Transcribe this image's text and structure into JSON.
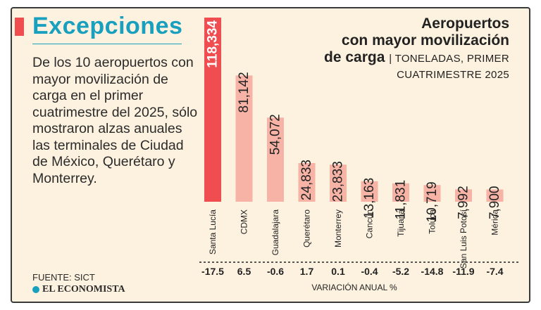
{
  "headline": "Excepciones",
  "body_text": "De los 10 aeropuertos con mayor movilización de carga en el primer cuatrimestre del 2025, sólo mostraron alzas anuales las terminales de Ciudad de México, Querétaro y Monterrey.",
  "source": "FUENTE: SICT",
  "brand": "EL ECONOMISTA",
  "colors": {
    "accent": "#ef4d4f",
    "headline": "#1aa0bf",
    "bar": "#f7b3a6",
    "bar_highlight": "#ef4d4f",
    "background": "#fdf2df"
  },
  "chart_data": {
    "type": "bar",
    "title_line1": "Aeropuertos",
    "title_line2": "con mayor movilización",
    "title_line3": "de carga",
    "subtitle_part1": "| TONELADAS, PRIMER",
    "subtitle_part2": "CUATRIMESTRE 2025",
    "unit": "toneladas",
    "categories": [
      "Santa Lucía",
      "CDMX",
      "Guadalajara",
      "Querétaro",
      "Monterrey",
      "Cancún",
      "Tijuana",
      "Toluca",
      "San Luis Potosí",
      "Mérida"
    ],
    "values": [
      118334,
      81142,
      54072,
      24833,
      23833,
      13163,
      11831,
      10719,
      7992,
      7900
    ],
    "value_labels": [
      "118,334",
      "81,142",
      "54,072",
      "24,833",
      "23,833",
      "13,163",
      "11,831",
      "10,719",
      "7,992",
      "7,900"
    ],
    "highlight_index": 0,
    "variation_title": "VARIACIÓN ANUAL %",
    "variation_labels": [
      "-17.5",
      "6.5",
      "-0.6",
      "1.7",
      "0.1",
      "-0.4",
      "-5.2",
      "-14.8",
      "-11.9",
      "-7.4"
    ],
    "ylim": [
      0,
      118334
    ]
  }
}
